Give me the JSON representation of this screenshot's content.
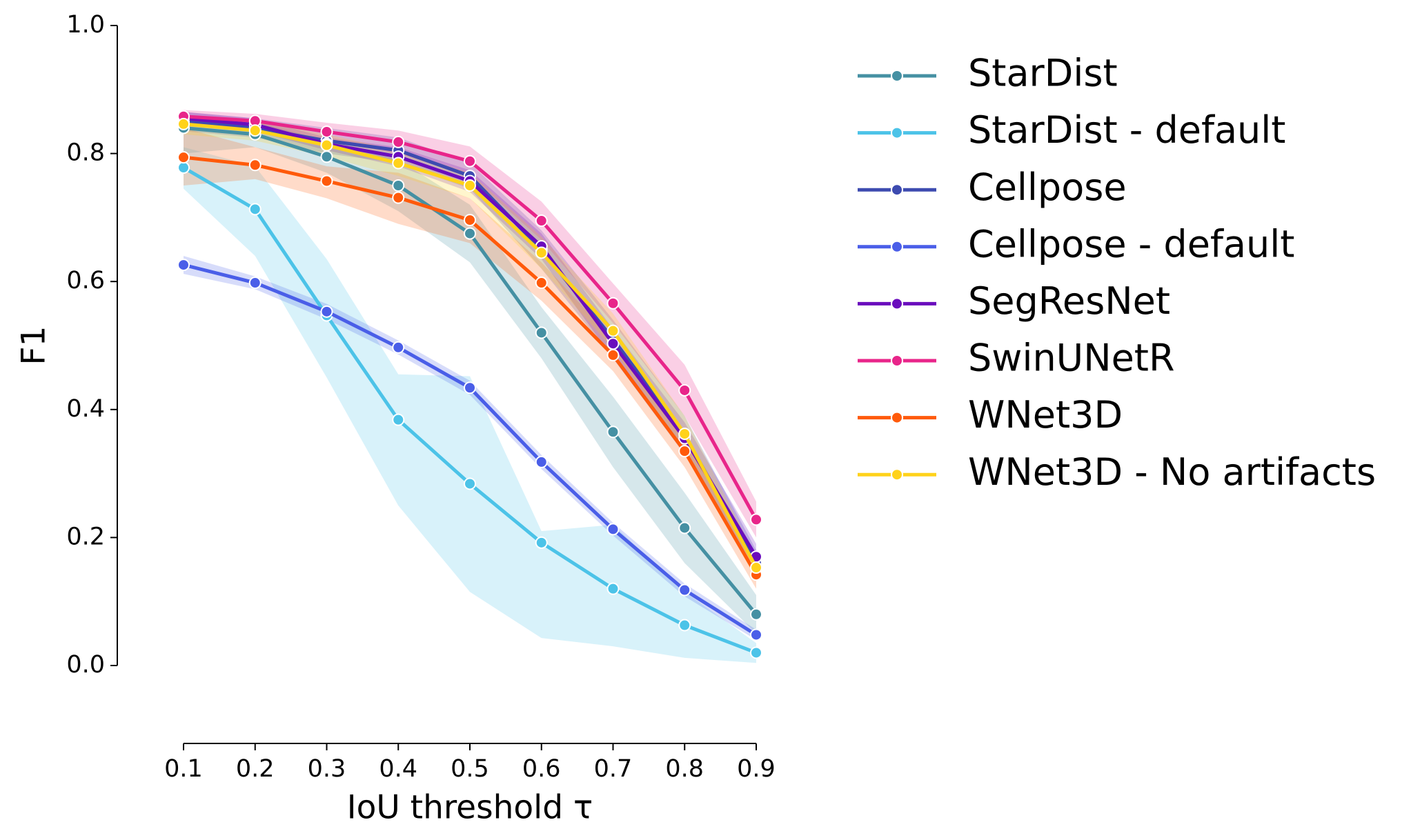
{
  "chart_data": {
    "type": "line",
    "xlabel": "IoU threshold τ",
    "ylabel": "F1",
    "x": [
      0.1,
      0.2,
      0.3,
      0.4,
      0.5,
      0.6,
      0.7,
      0.8,
      0.9
    ],
    "xlim": [
      0.1,
      0.9
    ],
    "xticks": [
      0.1,
      0.2,
      0.3,
      0.4,
      0.5,
      0.6,
      0.7,
      0.8,
      0.9
    ],
    "ylim": [
      0,
      1
    ],
    "yticks": [
      {
        "value": 0,
        "label": "0.0"
      },
      0.2,
      0.4,
      0.6,
      0.8,
      {
        "value": 1,
        "label": "1.0"
      }
    ],
    "legend": "outside-right",
    "series": [
      {
        "name": "StarDist",
        "color": "#4590a3",
        "values": [
          0.84,
          0.83,
          0.795,
          0.75,
          0.675,
          0.52,
          0.365,
          0.215,
          0.08
        ],
        "lower": [
          0.8,
          0.81,
          0.77,
          0.71,
          0.63,
          0.48,
          0.31,
          0.16,
          0.05
        ],
        "upper": [
          0.86,
          0.85,
          0.82,
          0.79,
          0.72,
          0.56,
          0.42,
          0.27,
          0.11
        ]
      },
      {
        "name": "StarDist - default",
        "color": "#4cc3e8",
        "values": [
          0.778,
          0.713,
          0.547,
          0.384,
          0.284,
          0.192,
          0.12,
          0.063,
          0.02
        ],
        "lower": [
          0.745,
          0.64,
          0.45,
          0.25,
          0.115,
          0.043,
          0.03,
          0.012,
          0.004
        ],
        "upper": [
          0.81,
          0.78,
          0.635,
          0.455,
          0.452,
          0.21,
          0.22,
          0.115,
          0.035
        ]
      },
      {
        "name": "Cellpose",
        "color": "#3d4bb0",
        "values": [
          0.85,
          0.84,
          0.82,
          0.805,
          0.765,
          0.65,
          0.51,
          0.36,
          0.16
        ],
        "lower": [
          0.835,
          0.825,
          0.8,
          0.785,
          0.745,
          0.62,
          0.48,
          0.33,
          0.14
        ],
        "upper": [
          0.865,
          0.855,
          0.84,
          0.825,
          0.785,
          0.68,
          0.54,
          0.39,
          0.18
        ]
      },
      {
        "name": "Cellpose - default",
        "color": "#4a5ee8",
        "values": [
          0.626,
          0.598,
          0.553,
          0.497,
          0.434,
          0.318,
          0.213,
          0.118,
          0.048
        ],
        "lower": [
          0.612,
          0.588,
          0.541,
          0.486,
          0.423,
          0.307,
          0.203,
          0.108,
          0.04
        ],
        "upper": [
          0.64,
          0.608,
          0.565,
          0.508,
          0.445,
          0.329,
          0.223,
          0.128,
          0.056
        ]
      },
      {
        "name": "SegResNet",
        "color": "#6a0dbd",
        "values": [
          0.855,
          0.845,
          0.815,
          0.795,
          0.757,
          0.655,
          0.503,
          0.355,
          0.17
        ],
        "lower": [
          0.845,
          0.835,
          0.805,
          0.78,
          0.74,
          0.635,
          0.48,
          0.33,
          0.15
        ],
        "upper": [
          0.865,
          0.855,
          0.825,
          0.81,
          0.774,
          0.675,
          0.526,
          0.38,
          0.19
        ]
      },
      {
        "name": "SwinUNetR",
        "color": "#e8258a",
        "values": [
          0.858,
          0.851,
          0.834,
          0.818,
          0.788,
          0.695,
          0.566,
          0.43,
          0.228
        ],
        "lower": [
          0.848,
          0.84,
          0.82,
          0.8,
          0.765,
          0.665,
          0.535,
          0.39,
          0.2
        ],
        "upper": [
          0.868,
          0.862,
          0.848,
          0.836,
          0.811,
          0.725,
          0.597,
          0.47,
          0.256
        ]
      },
      {
        "name": "WNet3D",
        "color": "#ff5a0a",
        "values": [
          0.794,
          0.782,
          0.757,
          0.731,
          0.696,
          0.598,
          0.485,
          0.335,
          0.142
        ],
        "lower": [
          0.75,
          0.76,
          0.73,
          0.69,
          0.66,
          0.57,
          0.46,
          0.31,
          0.12
        ],
        "upper": [
          0.84,
          0.81,
          0.78,
          0.77,
          0.73,
          0.63,
          0.51,
          0.36,
          0.165
        ]
      },
      {
        "name": "WNet3D - No artifacts",
        "color": "#ffd21a",
        "values": [
          0.846,
          0.836,
          0.813,
          0.785,
          0.75,
          0.645,
          0.523,
          0.362,
          0.153
        ],
        "lower": [
          0.83,
          0.82,
          0.795,
          0.765,
          0.73,
          0.62,
          0.495,
          0.335,
          0.135
        ],
        "upper": [
          0.86,
          0.85,
          0.83,
          0.805,
          0.77,
          0.67,
          0.55,
          0.39,
          0.17
        ]
      }
    ]
  }
}
